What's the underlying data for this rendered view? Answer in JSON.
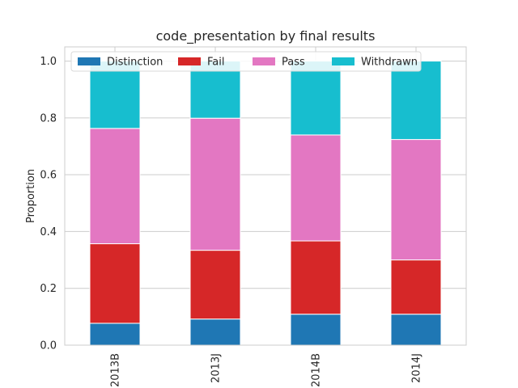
{
  "chart_data": {
    "type": "bar",
    "stacked": true,
    "title": "code_presentation by final results",
    "xlabel": "",
    "ylabel": "Proportion",
    "categories": [
      "2013B",
      "2013J",
      "2014B",
      "2014J"
    ],
    "ylim": [
      0,
      1.05
    ],
    "yticks": [
      0.0,
      0.2,
      0.4,
      0.6,
      0.8,
      1.0
    ],
    "ytick_labels": [
      "0.0",
      "0.2",
      "0.4",
      "0.6",
      "0.8",
      "1.0"
    ],
    "grid": true,
    "legend": "top, horizontal",
    "series": [
      {
        "name": "Distinction",
        "color": "#1f77b4",
        "values": [
          0.077,
          0.092,
          0.109,
          0.109
        ]
      },
      {
        "name": "Fail",
        "color": "#d62728",
        "values": [
          0.28,
          0.242,
          0.258,
          0.191
        ]
      },
      {
        "name": "Pass",
        "color": "#e377c2",
        "values": [
          0.406,
          0.465,
          0.373,
          0.424
        ]
      },
      {
        "name": "Withdrawn",
        "color": "#17becf",
        "values": [
          0.237,
          0.201,
          0.26,
          0.276
        ]
      }
    ]
  }
}
